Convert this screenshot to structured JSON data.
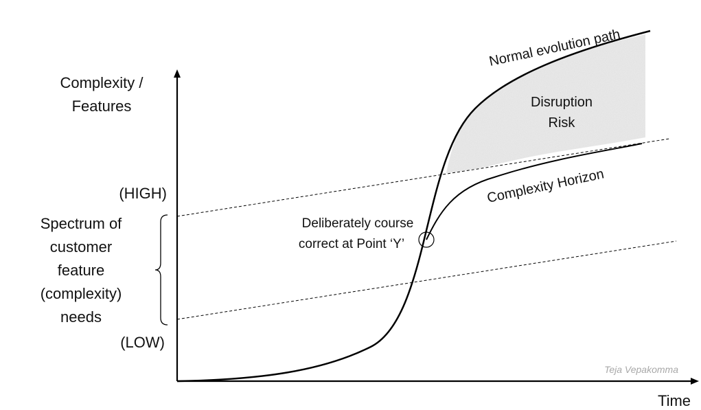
{
  "diagram": {
    "y_axis_label": {
      "line1": "Complexity /",
      "line2": "Features"
    },
    "x_axis_label": "Time",
    "high_label": "(HIGH)",
    "low_label": "(LOW)",
    "spectrum_label": {
      "line1": "Spectrum of",
      "line2": "customer",
      "line3": "feature",
      "line4": "(complexity)",
      "line5": "needs"
    },
    "correction_label": {
      "line1": "Deliberately course",
      "line2": "correct at Point ‘Y’"
    },
    "normal_path_label": "Normal evolution path",
    "horizon_label": "Complexity Horizon",
    "risk_label": {
      "line1": "Disruption",
      "line2": "Risk"
    },
    "watermark": "Teja Vepakomma",
    "colors": {
      "line": "#000000",
      "risk_fill": "#dcdcdc",
      "watermark": "#a8a8a8"
    }
  }
}
